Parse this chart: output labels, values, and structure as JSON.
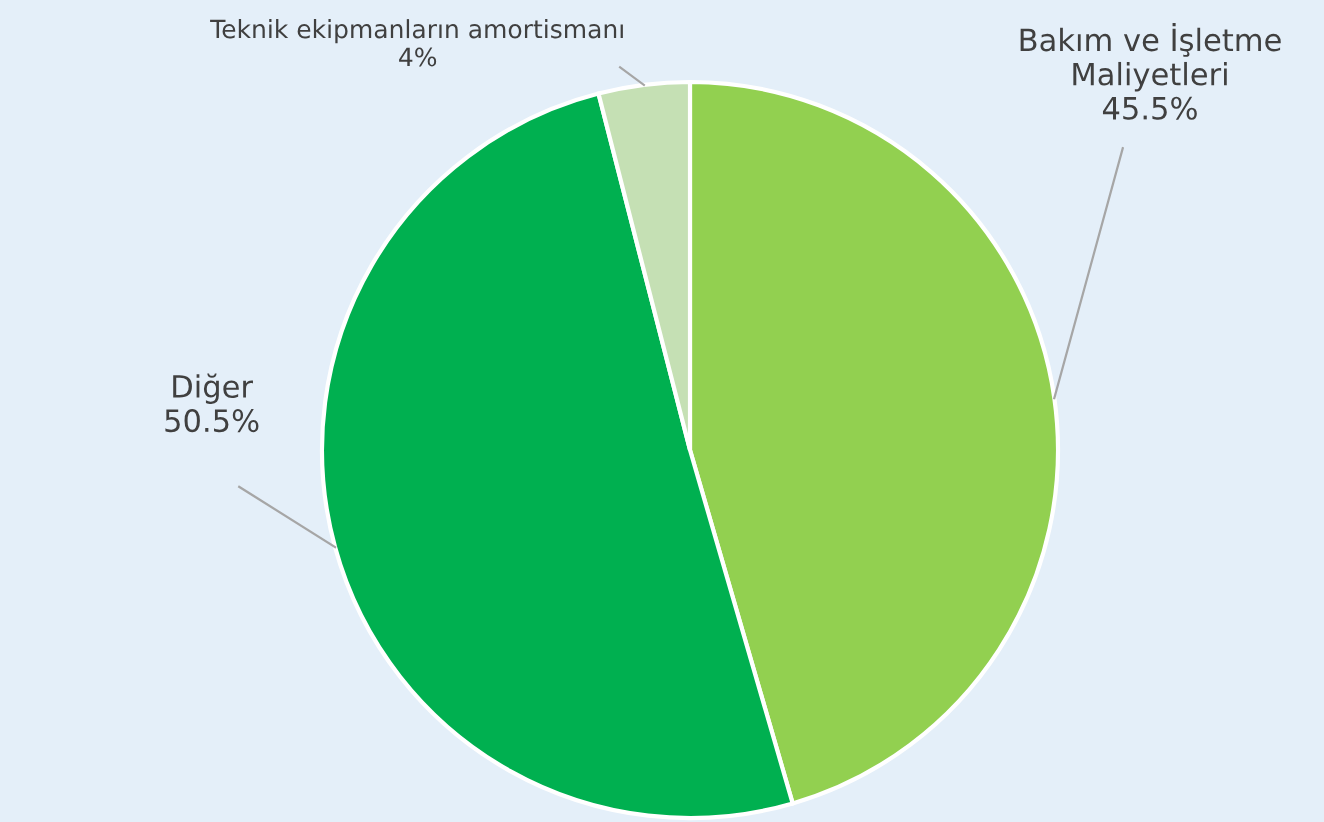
{
  "chart_data": {
    "type": "pie",
    "categories": [
      "Bakım ve İşletme\nMaliyetleri",
      "Diğer",
      "Teknik ekipmanların amortismanı"
    ],
    "values": [
      45.5,
      50.5,
      4
    ],
    "colors": [
      "#92d050",
      "#00b050",
      "#c5e0b4"
    ],
    "value_labels": [
      "45.5%",
      "50.5%",
      "4%"
    ]
  }
}
